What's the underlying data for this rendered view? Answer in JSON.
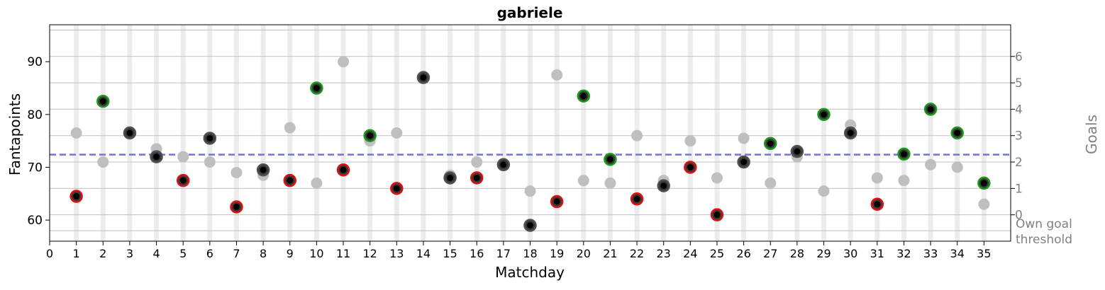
{
  "chart_data": {
    "type": "scatter",
    "title": "gabriele",
    "xlabel": "Matchday",
    "ylabel": "Fantapoints",
    "y2label": "Goals",
    "y2_threshold_label": [
      "Own goal",
      "threshold"
    ],
    "xlim": [
      0,
      36
    ],
    "ylim": [
      56,
      97
    ],
    "x_ticks": [
      0,
      1,
      2,
      3,
      4,
      5,
      6,
      7,
      8,
      9,
      10,
      11,
      12,
      13,
      14,
      15,
      16,
      17,
      18,
      19,
      20,
      21,
      22,
      23,
      24,
      25,
      26,
      27,
      28,
      29,
      30,
      31,
      32,
      33,
      34,
      35
    ],
    "y_ticks": [
      60,
      70,
      80,
      90
    ],
    "y2_ticks": [
      {
        "label": "0",
        "y": 61
      },
      {
        "label": "1",
        "y": 66
      },
      {
        "label": "2",
        "y": 71
      },
      {
        "label": "3",
        "y": 76
      },
      {
        "label": "4",
        "y": 81
      },
      {
        "label": "5",
        "y": 86
      },
      {
        "label": "6",
        "y": 91
      }
    ],
    "y2_gridlines": [
      58,
      61,
      66,
      71,
      76,
      81,
      86,
      91,
      96
    ],
    "mean_line": 72.4,
    "colors": {
      "win": "#1a9a1a",
      "loss": "#e01010",
      "draw": "#505050",
      "other": "#bfbfbf",
      "mean": "#6f72e6",
      "marker_center": "#000000",
      "stripe": "#ececec",
      "grid": "#c0c0c0",
      "right_axis_text": "#808080"
    },
    "series": [
      {
        "role": "player",
        "points": [
          {
            "x": 1,
            "y": 64.5,
            "result": "loss"
          },
          {
            "x": 2,
            "y": 82.5,
            "result": "win"
          },
          {
            "x": 3,
            "y": 76.5,
            "result": "draw"
          },
          {
            "x": 4,
            "y": 72,
            "result": "draw"
          },
          {
            "x": 5,
            "y": 67.5,
            "result": "loss"
          },
          {
            "x": 6,
            "y": 75.5,
            "result": "draw"
          },
          {
            "x": 7,
            "y": 62.5,
            "result": "loss"
          },
          {
            "x": 8,
            "y": 69.5,
            "result": "draw"
          },
          {
            "x": 9,
            "y": 67.5,
            "result": "loss"
          },
          {
            "x": 10,
            "y": 85,
            "result": "win"
          },
          {
            "x": 11,
            "y": 69.5,
            "result": "loss"
          },
          {
            "x": 12,
            "y": 76,
            "result": "win"
          },
          {
            "x": 13,
            "y": 66,
            "result": "loss"
          },
          {
            "x": 14,
            "y": 87,
            "result": "draw"
          },
          {
            "x": 15,
            "y": 68,
            "result": "draw"
          },
          {
            "x": 16,
            "y": 68,
            "result": "loss"
          },
          {
            "x": 17,
            "y": 70.5,
            "result": "draw"
          },
          {
            "x": 18,
            "y": 59,
            "result": "draw"
          },
          {
            "x": 19,
            "y": 63.5,
            "result": "loss"
          },
          {
            "x": 20,
            "y": 83.5,
            "result": "win"
          },
          {
            "x": 21,
            "y": 71.5,
            "result": "win"
          },
          {
            "x": 22,
            "y": 64,
            "result": "loss"
          },
          {
            "x": 23,
            "y": 66.5,
            "result": "draw"
          },
          {
            "x": 24,
            "y": 70,
            "result": "loss"
          },
          {
            "x": 25,
            "y": 61,
            "result": "loss"
          },
          {
            "x": 26,
            "y": 71,
            "result": "draw"
          },
          {
            "x": 27,
            "y": 74.5,
            "result": "win"
          },
          {
            "x": 28,
            "y": 73,
            "result": "draw"
          },
          {
            "x": 29,
            "y": 80,
            "result": "win"
          },
          {
            "x": 30,
            "y": 76.5,
            "result": "draw"
          },
          {
            "x": 31,
            "y": 63,
            "result": "loss"
          },
          {
            "x": 32,
            "y": 72.5,
            "result": "win"
          },
          {
            "x": 33,
            "y": 81,
            "result": "win"
          },
          {
            "x": 34,
            "y": 76.5,
            "result": "win"
          },
          {
            "x": 35,
            "y": 67,
            "result": "win"
          }
        ]
      },
      {
        "role": "opponent",
        "points": [
          {
            "x": 1,
            "y": 76.5
          },
          {
            "x": 2,
            "y": 71
          },
          {
            "x": 3,
            "y": 76.5
          },
          {
            "x": 4,
            "y": 73.5
          },
          {
            "x": 5,
            "y": 72
          },
          {
            "x": 6,
            "y": 71
          },
          {
            "x": 7,
            "y": 69
          },
          {
            "x": 8,
            "y": 68.5
          },
          {
            "x": 9,
            "y": 77.5
          },
          {
            "x": 10,
            "y": 67
          },
          {
            "x": 11,
            "y": 90
          },
          {
            "x": 12,
            "y": 75
          },
          {
            "x": 13,
            "y": 76.5
          },
          {
            "x": 14,
            "y": 87
          },
          {
            "x": 15,
            "y": 68.5
          },
          {
            "x": 16,
            "y": 71
          },
          {
            "x": 17,
            "y": 70.5
          },
          {
            "x": 18,
            "y": 65.5
          },
          {
            "x": 19,
            "y": 87.5
          },
          {
            "x": 20,
            "y": 67.5
          },
          {
            "x": 21,
            "y": 67
          },
          {
            "x": 22,
            "y": 76
          },
          {
            "x": 23,
            "y": 67.5
          },
          {
            "x": 24,
            "y": 75
          },
          {
            "x": 25,
            "y": 68
          },
          {
            "x": 26,
            "y": 75.5
          },
          {
            "x": 27,
            "y": 67
          },
          {
            "x": 28,
            "y": 72
          },
          {
            "x": 29,
            "y": 65.5
          },
          {
            "x": 30,
            "y": 78
          },
          {
            "x": 31,
            "y": 68
          },
          {
            "x": 32,
            "y": 67.5
          },
          {
            "x": 33,
            "y": 70.5
          },
          {
            "x": 34,
            "y": 70
          },
          {
            "x": 35,
            "y": 63
          }
        ]
      }
    ]
  }
}
